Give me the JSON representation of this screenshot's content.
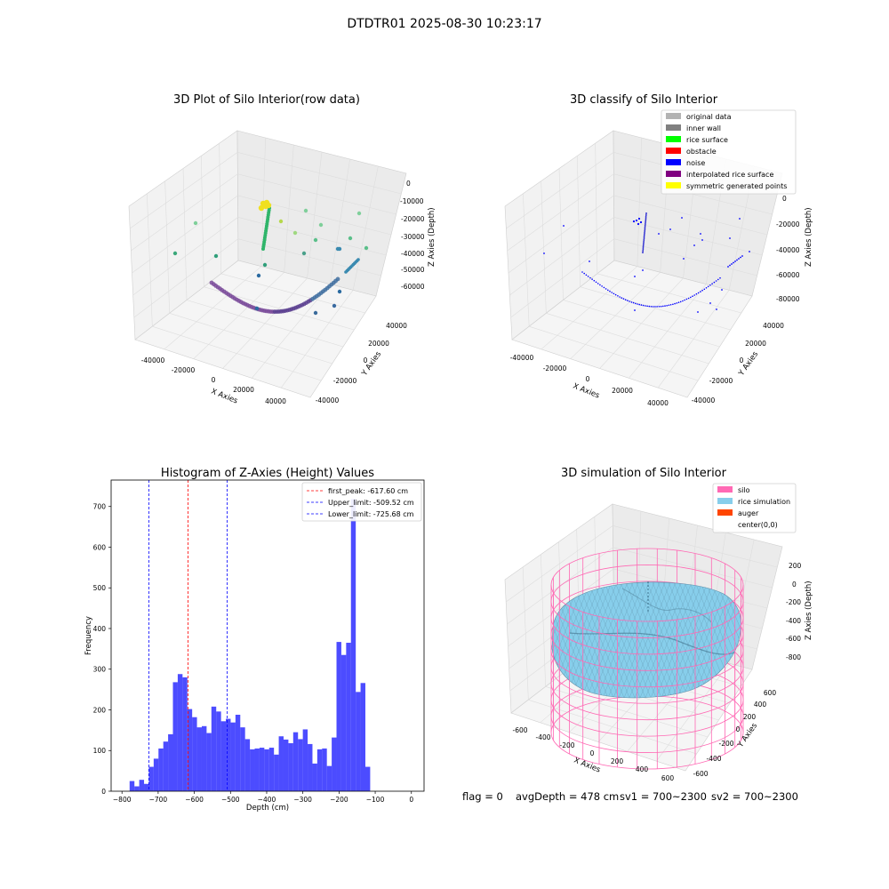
{
  "suptitle": "DTDTR01 2025-08-30 10:23:17",
  "chart_data": [
    {
      "type": "scatter",
      "subtype": "scatter3d",
      "title": "3D Plot of Silo Interior(row data)",
      "xlabel": "X Axies",
      "ylabel": "Y Axies",
      "zlabel": "Z Axies (Depth)",
      "xticks": [
        "-40000",
        "-20000",
        "0",
        "20000",
        "40000"
      ],
      "yticks": [
        "-40000",
        "-20000",
        "0",
        "20000",
        "40000"
      ],
      "zticks": [
        "0",
        "-10000",
        "-20000",
        "-30000",
        "-40000",
        "-50000",
        "-60000"
      ],
      "grid": true
    },
    {
      "type": "scatter",
      "subtype": "scatter3d",
      "title": "3D classify of Silo Interior",
      "xlabel": "X Axies",
      "ylabel": "Y Axies",
      "zlabel": "Z Axies (Depth)",
      "xticks": [
        "-40000",
        "-20000",
        "0",
        "20000",
        "40000"
      ],
      "yticks": [
        "-40000",
        "-20000",
        "0",
        "20000",
        "40000"
      ],
      "zticks": [
        "0",
        "-20000",
        "-40000",
        "-60000",
        "-80000"
      ],
      "legend_position": "top-right",
      "legend": [
        {
          "label": "original data",
          "color": "#b3b3b3"
        },
        {
          "label": "inner wall",
          "color": "#808080"
        },
        {
          "label": "rice surface",
          "color": "#00ff00"
        },
        {
          "label": "obstacle",
          "color": "#ff0000"
        },
        {
          "label": "noise",
          "color": "#0000ff"
        },
        {
          "label": "interpolated rice surface",
          "color": "#800080"
        },
        {
          "label": "symmetric generated points",
          "color": "#ffff00"
        }
      ],
      "grid": true
    },
    {
      "type": "bar",
      "subtype": "histogram",
      "title": "Histogram of Z-Axies (Height) Values",
      "xlabel": "Depth (cm)",
      "ylabel": "Frequency",
      "xlim": [
        -830,
        35
      ],
      "ylim": [
        0,
        765
      ],
      "xticks": [
        -800,
        -700,
        -600,
        -500,
        -400,
        -300,
        -200,
        -100,
        0
      ],
      "yticks": [
        0,
        100,
        200,
        300,
        400,
        500,
        600,
        700
      ],
      "bin_width": 13.3,
      "bin_start": -778.9,
      "counts": [
        25,
        12,
        28,
        18,
        60,
        80,
        105,
        122,
        140,
        268,
        288,
        280,
        202,
        182,
        157,
        160,
        143,
        208,
        196,
        172,
        178,
        169,
        188,
        157,
        128,
        103,
        105,
        107,
        103,
        107,
        90,
        135,
        127,
        118,
        145,
        128,
        152,
        116,
        68,
        103,
        105,
        62,
        132,
        367,
        335,
        365,
        718,
        244,
        266,
        60
      ],
      "bar_color": "#0000ff",
      "vlines": [
        {
          "label": "first_peak: -617.60 cm",
          "x": -617.6,
          "color": "#ff0000"
        },
        {
          "label": "Upper_limit: -509.52 cm",
          "x": -509.52,
          "color": "#0000ff"
        },
        {
          "label": "Lower_limit: -725.68 cm",
          "x": -725.68,
          "color": "#0000ff"
        }
      ],
      "legend_position": "top-right"
    },
    {
      "type": "area",
      "subtype": "surface3d",
      "title": "3D simulation of Silo Interior",
      "xlabel": "X Axies",
      "ylabel": "Y Axies",
      "zlabel": "Z Axies (Depth)",
      "xticks": [
        "-600",
        "-400",
        "-200",
        "0",
        "200",
        "400",
        "600"
      ],
      "yticks": [
        "-600",
        "-400",
        "-200",
        "0",
        "200",
        "400",
        "600"
      ],
      "zticks": [
        "200",
        "0",
        "-200",
        "-400",
        "-600",
        "-800"
      ],
      "legend_position": "top-right",
      "legend": [
        {
          "label": "silo",
          "color": "#ff69b4"
        },
        {
          "label": "rice simulation",
          "color": "#87ceeb"
        },
        {
          "label": "auger",
          "color": "#ff4500"
        },
        {
          "label": "center(0,0)",
          "color": ""
        }
      ],
      "grid": true
    }
  ],
  "status": {
    "flag": "flag = 0",
    "avg_depth": "avgDepth = 478 cm",
    "sv1": "sv1 = 700~2300",
    "sv2": "sv2 = 700~2300"
  }
}
